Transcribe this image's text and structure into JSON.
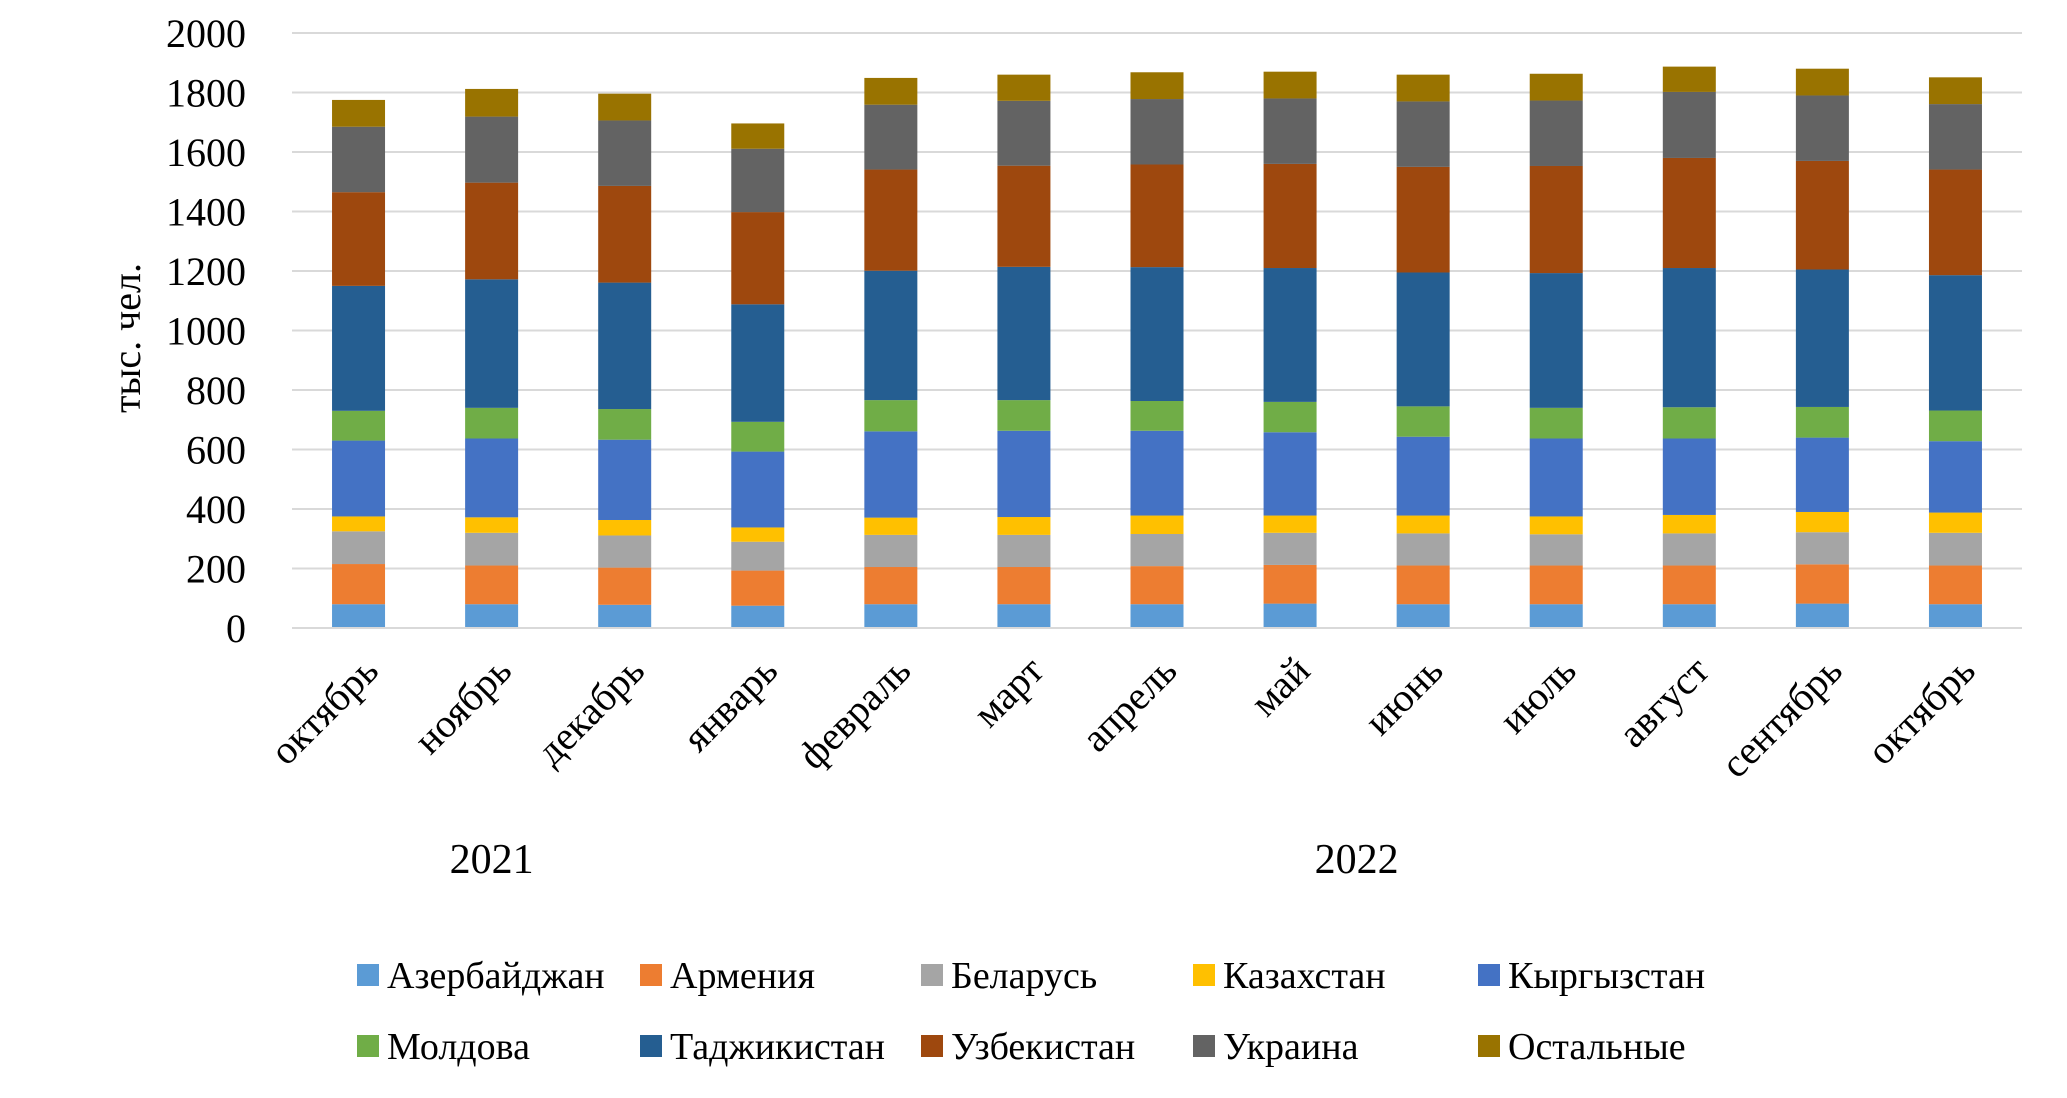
{
  "chart_data": {
    "type": "bar",
    "stacked": true,
    "ylabel": "тыс. чел.",
    "ylim": [
      0,
      2000
    ],
    "yticks": [
      0,
      200,
      400,
      600,
      800,
      1000,
      1200,
      1400,
      1600,
      1800,
      2000
    ],
    "grid": true,
    "legend_position": "bottom",
    "categories": [
      "октябрь",
      "ноябрь",
      "декабрь",
      "январь",
      "февраль",
      "март",
      "апрель",
      "май",
      "июнь",
      "июль",
      "август",
      "сентябрь",
      "октябрь"
    ],
    "year_groups": [
      {
        "label": "2021",
        "from": 0,
        "to": 2
      },
      {
        "label": "2022",
        "from": 3,
        "to": 12
      }
    ],
    "series": [
      {
        "name": "Азербайджан",
        "color": "#5B9BD5",
        "values": [
          80,
          80,
          78,
          75,
          80,
          80,
          80,
          82,
          80,
          80,
          80,
          82,
          80
        ]
      },
      {
        "name": "Армения",
        "color": "#ED7D31",
        "values": [
          135,
          130,
          125,
          118,
          125,
          125,
          128,
          130,
          130,
          130,
          130,
          132,
          130
        ]
      },
      {
        "name": "Беларусь",
        "color": "#A5A5A5",
        "values": [
          110,
          110,
          108,
          97,
          108,
          108,
          108,
          108,
          108,
          105,
          108,
          108,
          110
        ]
      },
      {
        "name": "Казахстан",
        "color": "#FFC000",
        "values": [
          50,
          52,
          52,
          48,
          58,
          60,
          62,
          58,
          60,
          60,
          62,
          68,
          68
        ]
      },
      {
        "name": "Кыргызстан",
        "color": "#4472C4",
        "values": [
          255,
          265,
          270,
          255,
          290,
          290,
          285,
          280,
          265,
          262,
          257,
          250,
          240
        ]
      },
      {
        "name": "Молдова",
        "color": "#70AD47",
        "values": [
          100,
          103,
          103,
          100,
          105,
          103,
          100,
          102,
          102,
          103,
          105,
          103,
          103
        ]
      },
      {
        "name": "Таджикистан",
        "color": "#255E91",
        "values": [
          420,
          432,
          425,
          395,
          435,
          448,
          450,
          450,
          450,
          453,
          468,
          462,
          455
        ]
      },
      {
        "name": "Узбекистан",
        "color": "#9E480E",
        "values": [
          315,
          325,
          325,
          310,
          340,
          340,
          345,
          350,
          355,
          360,
          370,
          365,
          355
        ]
      },
      {
        "name": "Украина",
        "color": "#636363",
        "values": [
          220,
          222,
          220,
          213,
          218,
          218,
          220,
          220,
          220,
          220,
          222,
          220,
          220
        ]
      },
      {
        "name": "Остальные",
        "color": "#997300",
        "values": [
          90,
          93,
          90,
          85,
          90,
          88,
          90,
          90,
          90,
          90,
          85,
          90,
          90
        ]
      }
    ]
  }
}
